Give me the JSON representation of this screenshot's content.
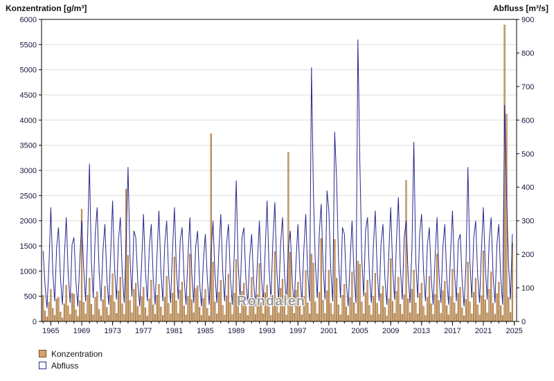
{
  "header": {
    "left_axis_title": "Konzentration [g/m³]",
    "right_axis_title": "Abfluss [m³/s]"
  },
  "watermark": "Rondalen",
  "legend": {
    "items": [
      {
        "label": "Konzentration",
        "swatch": "filled"
      },
      {
        "label": "Abfluss",
        "swatch": "outline"
      }
    ]
  },
  "colors": {
    "konzentration_fill": "#d4a468",
    "konzentration_edge": "#7a4a1e",
    "abfluss_line": "#26268c",
    "grid": "#dcdcdc",
    "axis": "#000000",
    "tick_text": "#14143c"
  },
  "chart_data": {
    "type": "bar+line",
    "title": "",
    "xlabel": "",
    "x_domain": [
      1963.8,
      2025.3
    ],
    "x_start": 1964.0,
    "x_step": 0.25,
    "left_axis": {
      "label": "Konzentration [g/m³]",
      "min": 0,
      "max": 6000,
      "step": 500,
      "ticks": [
        0,
        500,
        1000,
        1500,
        2000,
        2500,
        3000,
        3500,
        4000,
        4500,
        5000,
        5500,
        6000
      ]
    },
    "right_axis": {
      "label": "Abfluss [m³/s]",
      "min": 0,
      "max": 900,
      "step": 100,
      "ticks": [
        0,
        100,
        200,
        300,
        400,
        500,
        600,
        700,
        800,
        900
      ]
    },
    "x_axis": {
      "tick_years": [
        1965,
        1969,
        1973,
        1977,
        1981,
        1985,
        1989,
        1993,
        1997,
        2001,
        2005,
        2009,
        2013,
        2017,
        2021,
        2025
      ],
      "minor_tick_every": 1
    },
    "grid": "horizontal",
    "legend_position": "bottom-left",
    "series": [
      {
        "name": "Konzentration",
        "type": "bar",
        "axis": "left",
        "color": "#d4a468",
        "edge": "#7a4a1e",
        "values": [
          520,
          210,
          90,
          380,
          640,
          260,
          120,
          450,
          480,
          190,
          70,
          350,
          720,
          310,
          140,
          560,
          540,
          230,
          100,
          410,
          2230,
          380,
          150,
          520,
          860,
          340,
          130,
          480,
          590,
          240,
          110,
          430,
          700,
          280,
          120,
          520,
          950,
          390,
          160,
          610,
          880,
          350,
          140,
          2630,
          1310,
          420,
          170,
          640,
          760,
          300,
          130,
          490,
          680,
          270,
          110,
          450,
          820,
          330,
          140,
          520,
          740,
          290,
          120,
          480,
          900,
          360,
          150,
          560,
          1280,
          410,
          160,
          620,
          780,
          310,
          130,
          500,
          1340,
          430,
          170,
          650,
          710,
          280,
          120,
          460,
          640,
          260,
          110,
          3730,
          1180,
          390,
          150,
          580,
          820,
          320,
          130,
          510,
          940,
          370,
          140,
          560,
          1230,
          400,
          160,
          600,
          760,
          300,
          120,
          470,
          880,
          340,
          140,
          530,
          1150,
          380,
          150,
          570,
          720,
          290,
          120,
          460,
          1390,
          440,
          170,
          660,
          840,
          330,
          130,
          3360,
          1370,
          430,
          160,
          620,
          780,
          310,
          130,
          490,
          1010,
          370,
          150,
          1340,
          1160,
          390,
          150,
          580,
          1650,
          420,
          160,
          610,
          1020,
          360,
          140,
          1630,
          860,
          330,
          130,
          520,
          740,
          290,
          120,
          470,
          980,
          370,
          150,
          1200,
          1140,
          390,
          150,
          570,
          820,
          320,
          130,
          500,
          960,
          360,
          140,
          550,
          700,
          280,
          110,
          450,
          1250,
          400,
          160,
          600,
          880,
          340,
          140,
          530,
          2800,
          450,
          170,
          640,
          1020,
          370,
          150,
          560,
          760,
          300,
          120,
          480,
          900,
          350,
          140,
          540,
          1340,
          420,
          160,
          610,
          800,
          310,
          130,
          490,
          1040,
          370,
          150,
          560,
          680,
          270,
          110,
          440,
          1180,
          390,
          150,
          580,
          860,
          330,
          130,
          510,
          1400,
          430,
          170,
          640,
          980,
          360,
          140,
          550,
          780,
          310,
          120,
          5890,
          4120,
          480,
          180,
          1560
        ]
      },
      {
        "name": "Abfluss",
        "type": "line",
        "axis": "right",
        "color": "#26268c",
        "values": [
          210,
          110,
          40,
          160,
          340,
          150,
          60,
          220,
          280,
          130,
          50,
          190,
          310,
          140,
          55,
          230,
          250,
          120,
          45,
          180,
          300,
          160,
          60,
          240,
          470,
          180,
          70,
          260,
          340,
          150,
          60,
          210,
          290,
          130,
          50,
          200,
          360,
          160,
          65,
          240,
          310,
          140,
          55,
          230,
          460,
          190,
          75,
          270,
          250,
          120,
          45,
          170,
          320,
          150,
          60,
          220,
          290,
          130,
          50,
          200,
          330,
          150,
          60,
          230,
          300,
          140,
          55,
          210,
          340,
          160,
          65,
          240,
          280,
          130,
          50,
          190,
          310,
          140,
          55,
          220,
          270,
          120,
          45,
          180,
          260,
          130,
          50,
          200,
          300,
          140,
          55,
          210,
          320,
          150,
          60,
          230,
          290,
          130,
          50,
          200,
          420,
          170,
          70,
          250,
          280,
          130,
          50,
          190,
          260,
          120,
          45,
          180,
          300,
          140,
          55,
          210,
          360,
          160,
          65,
          240,
          355,
          150,
          60,
          230,
          310,
          140,
          55,
          220,
          270,
          120,
          45,
          180,
          290,
          140,
          55,
          210,
          320,
          150,
          60,
          757,
          380,
          170,
          70,
          260,
          350,
          160,
          65,
          390,
          330,
          150,
          60,
          565,
          420,
          180,
          70,
          280,
          260,
          120,
          45,
          180,
          300,
          140,
          55,
          840,
          480,
          190,
          75,
          270,
          310,
          140,
          55,
          220,
          330,
          150,
          60,
          230,
          290,
          130,
          50,
          200,
          340,
          160,
          65,
          240,
          370,
          160,
          65,
          250,
          300,
          140,
          55,
          220,
          535,
          180,
          70,
          260,
          320,
          150,
          60,
          230,
          280,
          130,
          50,
          190,
          310,
          140,
          55,
          220,
          290,
          130,
          50,
          200,
          330,
          150,
          60,
          240,
          260,
          120,
          45,
          170,
          460,
          180,
          70,
          250,
          300,
          140,
          55,
          210,
          340,
          160,
          65,
          240,
          310,
          140,
          55,
          230,
          290,
          130,
          50,
          645,
          380,
          170,
          65,
          260
        ]
      }
    ]
  }
}
